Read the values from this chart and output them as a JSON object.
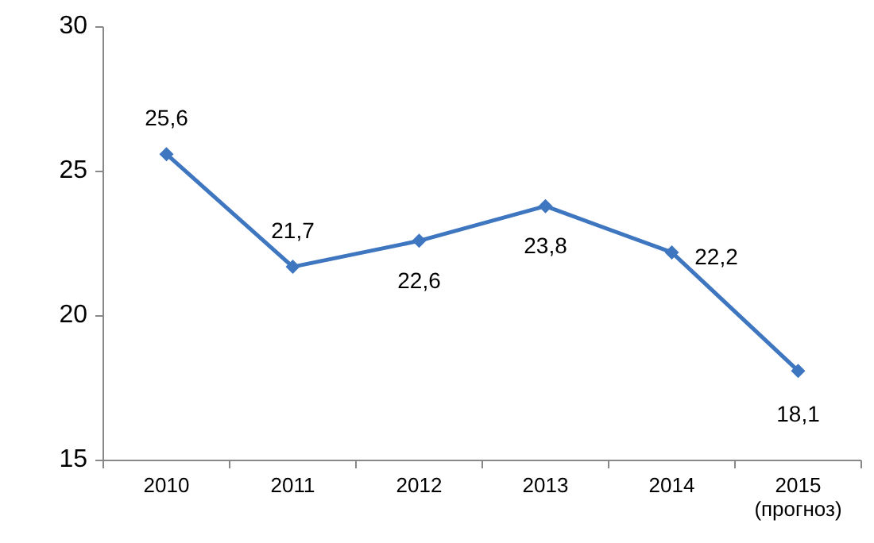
{
  "chart_data": {
    "type": "line",
    "categories": [
      "2010",
      "2011",
      "2012",
      "2013",
      "2014",
      "2015 (прогноз)"
    ],
    "series": [
      {
        "color": "#3f76c0",
        "values": [
          25.6,
          21.7,
          22.6,
          23.8,
          22.2,
          18.1
        ],
        "value_labels": [
          "25,6",
          "21,7",
          "22,6",
          "23,8",
          "22,2",
          "18,1"
        ]
      }
    ],
    "ylim": [
      15,
      30
    ],
    "yticks": [
      15,
      20,
      25,
      30
    ],
    "grid": false,
    "marker": "diamond",
    "line_style": "solid"
  }
}
